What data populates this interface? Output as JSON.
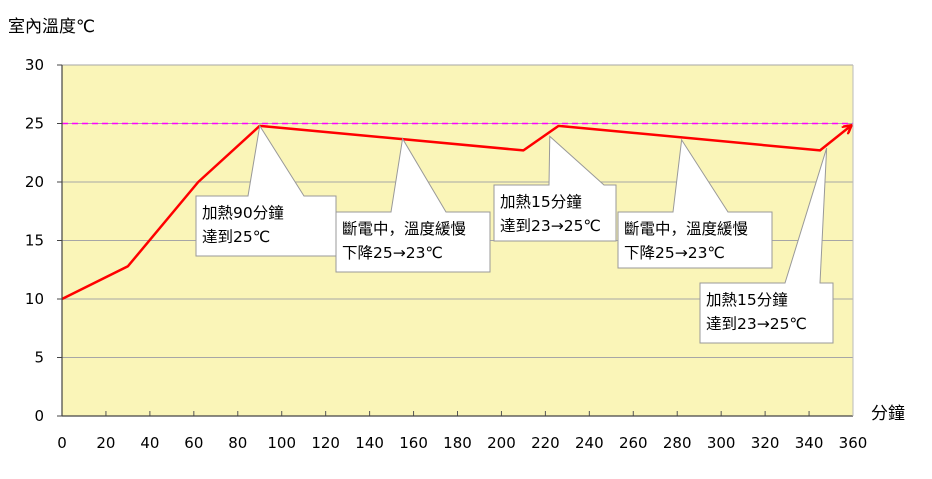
{
  "chart_data": {
    "type": "line",
    "title": "",
    "ylabel": "室內溫度℃",
    "xlabel": "分鐘",
    "xlim": [
      0,
      360
    ],
    "ylim": [
      0,
      30
    ],
    "x_ticks": [
      0,
      20,
      40,
      60,
      80,
      100,
      120,
      140,
      160,
      180,
      200,
      220,
      240,
      260,
      280,
      300,
      320,
      340,
      360
    ],
    "y_ticks": [
      0,
      5,
      10,
      15,
      20,
      25,
      30
    ],
    "grid": "horizontal",
    "plot_background": "#faf5b8",
    "series": [
      {
        "color": "#ff0000",
        "x": [
          0,
          30,
          62,
          90,
          210,
          226,
          345,
          359
        ],
        "y": [
          10,
          12.8,
          20,
          24.8,
          22.7,
          24.8,
          22.7,
          24.8
        ]
      }
    ],
    "reference_line": {
      "y": 25,
      "style": "dashed",
      "color": "#ff00ff"
    },
    "annotations": [
      {
        "lines": [
          "加熱90分鐘",
          "達到25℃"
        ],
        "target": [
          90,
          24.8
        ]
      },
      {
        "lines": [
          "斷電中，溫度緩慢",
          "下降25→23℃"
        ],
        "target": [
          155,
          23.7
        ]
      },
      {
        "lines": [
          "加熱15分鐘",
          "達到23→25℃"
        ],
        "target": [
          222,
          23.9
        ]
      },
      {
        "lines": [
          "斷電中，溫度緩慢",
          "下降25→23℃"
        ],
        "target": [
          282,
          23.6
        ]
      },
      {
        "lines": [
          "加熱15分鐘",
          "達到23→25℃"
        ],
        "target": [
          348,
          22.9
        ]
      }
    ]
  }
}
